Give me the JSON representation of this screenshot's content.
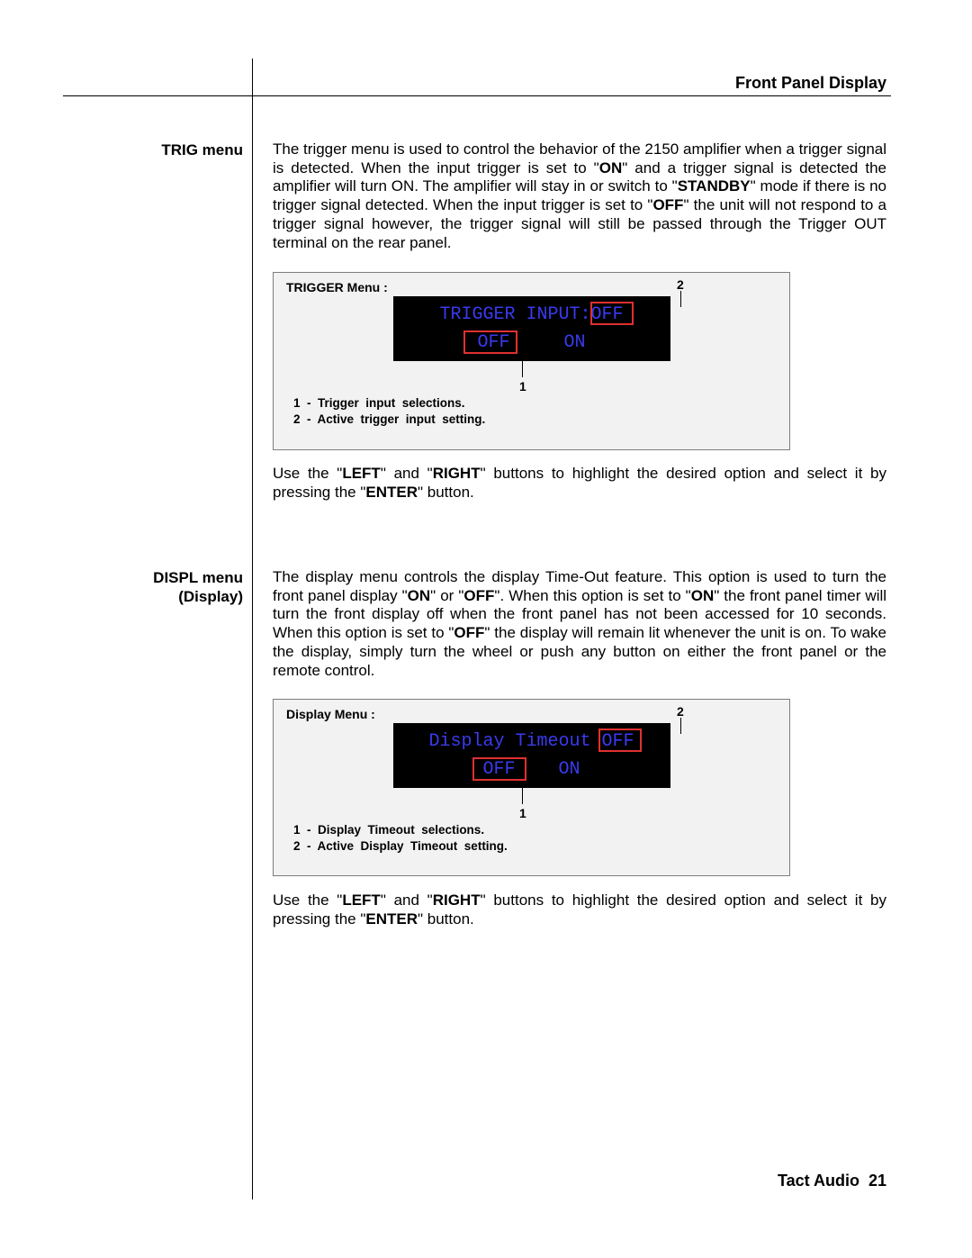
{
  "header": {
    "section_title": "Front Panel Display"
  },
  "sidebar": {
    "trig": "TRIG menu",
    "displ_line1": "DISPL menu",
    "displ_line2": "(Display)"
  },
  "trig": {
    "para_html": "The trigger menu is used to control the behavior of the 2150 amplifier when a trigger signal is detected. When the input trigger is set to \"<b>ON</b>\" and a trigger signal is detected  the amplifier will turn ON. The amplifier will stay in or switch to \"<b>STANDBY</b>\" mode if  there is no trigger signal detected. When the input trigger is set to \"<b>OFF</b>\" the unit will not respond to a trigger signal however, the trigger signal will still be passed through the Trigger OUT terminal on the rear panel.",
    "fig": {
      "title": "TRIGGER  Menu :",
      "line1_label": "TRIGGER INPUT:",
      "line1_value": "OFF",
      "opt_left": "OFF",
      "opt_right": "ON",
      "marker2": "2",
      "marker1": "1",
      "legend1": "1  -  Trigger  input  selections.",
      "legend2": "2  -  Active  trigger  input  setting.",
      "colors": {
        "bg": "#f2f2f2",
        "border": "#7d7d7d",
        "lcd_bg": "#000000",
        "lcd_text": "#3a3af0",
        "highlight": "#e03030"
      }
    },
    "after_html": "Use the \"<b>LEFT</b>\" and \"<b>RIGHT</b>\" buttons to highlight the desired option and select it by pressing the \"<b>ENTER</b>\" button."
  },
  "displ": {
    "para_html": "The display menu controls the display Time-Out feature. This option is used to turn the front panel  display \"<b>ON</b>\" or \"<b>OFF</b>\". When this option is set to \"<b>ON</b>\" the front panel timer will turn the front display off when the front panel has     not been accessed for 10 seconds.  When this option is set to \"<b>OFF</b>\" the display will remain lit whenever the unit is on. To wake the display, simply turn the wheel or push any button on   either the front panel or the remote control.",
    "fig": {
      "title": "Display  Menu  :",
      "line1_label": "Display Timeout",
      "line1_value": "OFF",
      "opt_left": "OFF",
      "opt_right": "ON",
      "marker2": "2",
      "marker1": "1",
      "legend1": "1  -  Display  Timeout  selections.",
      "legend2": "2  -  Active  Display  Timeout  setting.",
      "colors": {
        "bg": "#f2f2f2",
        "border": "#7d7d7d",
        "lcd_bg": "#000000",
        "lcd_text": "#3a3af0",
        "highlight": "#e03030"
      }
    },
    "after_html": "Use the \"<b>LEFT</b>\" and \"<b>RIGHT</b>\" buttons to highlight the desired option and select it by pressing the \"<b>ENTER</b>\" button."
  },
  "footer": {
    "brand": "Tact Audio",
    "page": "21"
  }
}
